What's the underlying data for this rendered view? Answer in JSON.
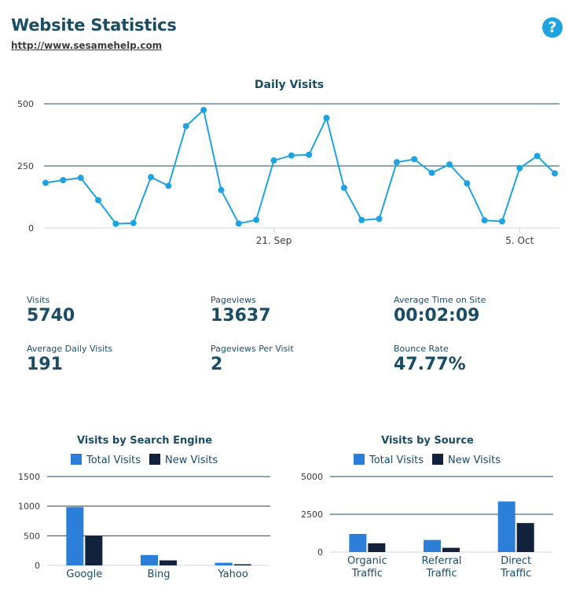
{
  "header": {
    "title": "Website Statistics",
    "url": "http://www.sesamehelp.com",
    "help_glyph": "?"
  },
  "stats": {
    "visits_label": "Visits",
    "visits_value": "5740",
    "pageviews_label": "Pageviews",
    "pageviews_value": "13637",
    "avg_time_label": "Average Time on Site",
    "avg_time_value": "00:02:09",
    "avg_daily_label": "Average Daily Visits",
    "avg_daily_value": "191",
    "ppv_label": "Pageviews Per Visit",
    "ppv_value": "2",
    "bounce_label": "Bounce Rate",
    "bounce_value": "47.77%"
  },
  "chart_data": [
    {
      "type": "line",
      "title": "Daily Visits",
      "xlabel": "",
      "ylabel": "",
      "ylim": [
        0,
        500
      ],
      "yticks": [
        "0",
        "250",
        "500"
      ],
      "xticks": [
        {
          "label": "21. Sep",
          "index": 13
        },
        {
          "label": "5. Oct",
          "index": 27
        }
      ],
      "color": "#1ea3e0",
      "values": [
        182,
        193,
        202,
        112,
        17,
        20,
        205,
        170,
        410,
        475,
        153,
        18,
        33,
        272,
        292,
        295,
        443,
        162,
        32,
        37,
        265,
        277,
        222,
        256,
        180,
        31,
        27,
        241,
        290,
        220
      ],
      "grid": true
    },
    {
      "type": "bar",
      "title": "Visits by Search Engine",
      "categories": [
        "Google",
        "Bing",
        "Yahoo"
      ],
      "series": [
        {
          "name": "Total Visits",
          "color": "#2b7fd8",
          "values": [
            985,
            175,
            45
          ]
        },
        {
          "name": "New Visits",
          "color": "#12223d",
          "values": [
            500,
            85,
            20
          ]
        }
      ],
      "ylim": [
        0,
        1500
      ],
      "yticks": [
        "0",
        "500",
        "1000",
        "1500"
      ],
      "legend": "top",
      "grid": true
    },
    {
      "type": "bar",
      "title": "Visits by Source",
      "categories": [
        [
          "Organic",
          "Traffic"
        ],
        [
          "Referral",
          "Traffic"
        ],
        [
          "Direct",
          "Traffic"
        ]
      ],
      "series": [
        {
          "name": "Total Visits",
          "color": "#2b7fd8",
          "values": [
            1200,
            800,
            3350
          ]
        },
        {
          "name": "New Visits",
          "color": "#12223d",
          "values": [
            580,
            280,
            1920
          ]
        }
      ],
      "ylim": [
        0,
        5000
      ],
      "yticks": [
        "0",
        "2500",
        "5000"
      ],
      "legend": "top",
      "grid": true
    }
  ]
}
